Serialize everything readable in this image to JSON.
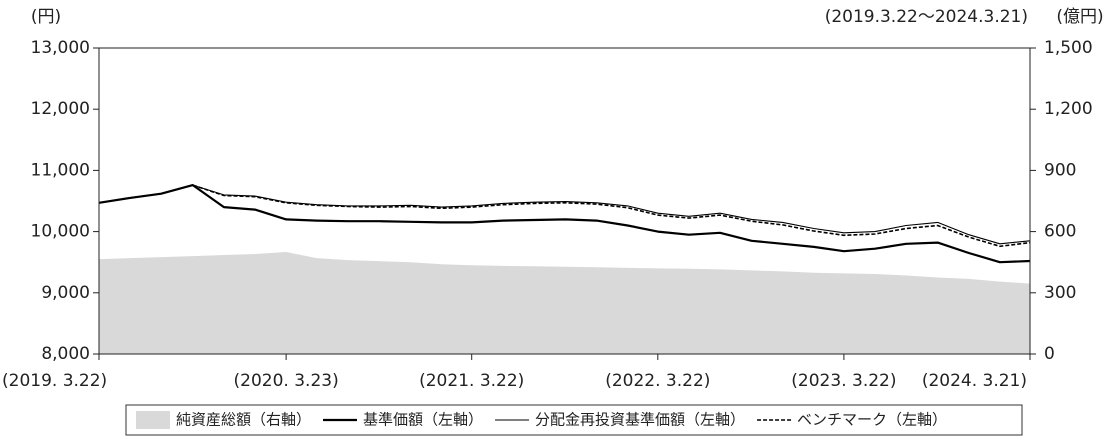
{
  "chart_data": {
    "type": "line",
    "subtitle": "(2019.3.22〜2024.3.21)",
    "y_label": "(円)",
    "y2_label": "(億円)",
    "x": [
      "2019-03-22",
      "2019-05-22",
      "2019-07-22",
      "2019-09-22",
      "2019-11-22",
      "2020-01-22",
      "2020-03-23",
      "2020-05-22",
      "2020-07-22",
      "2020-09-22",
      "2020-11-22",
      "2021-01-22",
      "2021-03-22",
      "2021-05-22",
      "2021-07-22",
      "2021-09-22",
      "2021-11-22",
      "2022-01-22",
      "2022-03-22",
      "2022-05-22",
      "2022-07-22",
      "2022-09-22",
      "2022-11-22",
      "2023-01-22",
      "2023-03-22",
      "2023-05-22",
      "2023-07-22",
      "2023-09-22",
      "2023-11-22",
      "2024-01-22",
      "2024-03-21"
    ],
    "series": [
      {
        "name": "純資産総額（右軸）",
        "kind": "area",
        "axis": "y2",
        "color": "#d9d9d9",
        "values": [
          465,
          470,
          475,
          480,
          485,
          490,
          500,
          470,
          460,
          455,
          450,
          440,
          435,
          432,
          430,
          428,
          425,
          422,
          420,
          418,
          415,
          410,
          405,
          398,
          395,
          392,
          385,
          375,
          368,
          355,
          345
        ]
      },
      {
        "name": "基準価額（左軸）",
        "kind": "line",
        "color": "#000000",
        "values": [
          10470,
          10550,
          10620,
          10760,
          10400,
          10360,
          10200,
          10180,
          10170,
          10170,
          10160,
          10150,
          10150,
          10180,
          10190,
          10200,
          10180,
          10100,
          10000,
          9950,
          9980,
          9850,
          9800,
          9750,
          9680,
          9720,
          9800,
          9820,
          9650,
          9500,
          9520
        ]
      },
      {
        "name": "分配金再投資基準価額（左軸）",
        "kind": "line",
        "color": "#000000",
        "values": [
          10470,
          10550,
          10620,
          10760,
          10600,
          10580,
          10480,
          10440,
          10420,
          10420,
          10430,
          10400,
          10420,
          10460,
          10480,
          10490,
          10470,
          10420,
          10300,
          10250,
          10300,
          10200,
          10150,
          10050,
          9980,
          10000,
          10100,
          10150,
          9950,
          9800,
          9850
        ]
      },
      {
        "name": "ベンチマーク（左軸）",
        "kind": "line",
        "dash": true,
        "color": "#000000",
        "values": [
          10470,
          10550,
          10620,
          10760,
          10590,
          10570,
          10470,
          10430,
          10410,
          10400,
          10410,
          10380,
          10400,
          10440,
          10460,
          10470,
          10450,
          10390,
          10270,
          10220,
          10270,
          10170,
          10110,
          10010,
          9940,
          9960,
          10050,
          10100,
          9910,
          9760,
          9820
        ]
      }
    ],
    "ylim": [
      8000,
      13000
    ],
    "yticks": [
      {
        "value": 8000,
        "label": "8,000"
      },
      {
        "value": 9000,
        "label": "9,000"
      },
      {
        "value": 10000,
        "label": "10,000"
      },
      {
        "value": 11000,
        "label": "11,000"
      },
      {
        "value": 12000,
        "label": "12,000"
      },
      {
        "value": 13000,
        "label": "13,000"
      }
    ],
    "y2lim": [
      0,
      1500
    ],
    "y2ticks": [
      0,
      300,
      600,
      900,
      {
        "value": 1200,
        "label": "1,200"
      },
      {
        "value": 1500,
        "label": "1,500"
      }
    ],
    "xlim": [
      "2019-03-22",
      "2024-03-21"
    ],
    "xticks": [
      {
        "value": "2019-03-22",
        "label": "(2019. 3.22)"
      },
      {
        "value": "2020-03-23",
        "label": "(2020. 3.23)"
      },
      {
        "value": "2021-03-22",
        "label": "(2021. 3.22)"
      },
      {
        "value": "2022-03-22",
        "label": "(2022. 3.22)"
      },
      {
        "value": "2023-03-22",
        "label": "(2023. 3.22)"
      },
      {
        "value": "2024-03-21",
        "label": "(2024. 3.21)"
      }
    ]
  }
}
